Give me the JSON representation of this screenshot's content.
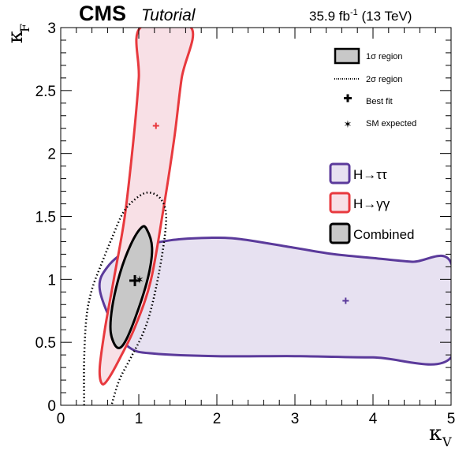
{
  "chart_data": {
    "type": "contour",
    "experiment": "CMS",
    "experiment_sub": "Tutorial",
    "lumi": "35.9 fb",
    "lumi_sup": "-1",
    "energy": " (13 TeV)",
    "xlabel": "κ",
    "xlabel_sub": "V",
    "ylabel": "κ",
    "ylabel_sub": "F",
    "xlim": [
      0,
      5
    ],
    "ylim": [
      0,
      3
    ],
    "xticks": [
      0,
      1,
      2,
      3,
      4,
      5
    ],
    "yticks": [
      0,
      0.5,
      1,
      1.5,
      2,
      2.5,
      3
    ],
    "ytick_labels": [
      "0",
      "0.5",
      "1",
      "1.5",
      "2",
      "2.5",
      "3"
    ],
    "style_legend": [
      {
        "label": "1σ region",
        "symbol": "box"
      },
      {
        "label": "2σ region",
        "symbol": "dotted"
      },
      {
        "label": "Best fit",
        "symbol": "cross"
      },
      {
        "label": "SM expected",
        "symbol": "star"
      }
    ],
    "series": [
      {
        "name": "H→ττ",
        "color": "#5b3a9b",
        "fill": "#e7e1f1",
        "best_fit": [
          3.65,
          0.83
        ],
        "contour_1sigma": [
          [
            0.7,
            0.6
          ],
          [
            0.5,
            0.92
          ],
          [
            0.6,
            1.1
          ],
          [
            0.9,
            1.24
          ],
          [
            1.4,
            1.31
          ],
          [
            1.9,
            1.33
          ],
          [
            2.3,
            1.32
          ],
          [
            3.0,
            1.25
          ],
          [
            3.5,
            1.2
          ],
          [
            4.0,
            1.17
          ],
          [
            4.5,
            1.14
          ],
          [
            5.0,
            1.13
          ],
          [
            5.0,
            0.38
          ],
          [
            4.0,
            0.38
          ],
          [
            3.0,
            0.39
          ],
          [
            2.0,
            0.39
          ],
          [
            1.2,
            0.41
          ],
          [
            0.9,
            0.45
          ],
          [
            0.7,
            0.6
          ]
        ]
      },
      {
        "name": "H→γγ",
        "color": "#e8393e",
        "fill": "#f8e0e6",
        "best_fit": [
          1.22,
          2.22
        ],
        "contour_1sigma": [
          [
            0.53,
            0.17
          ],
          [
            0.62,
            0.22
          ],
          [
            0.78,
            0.4
          ],
          [
            0.95,
            0.62
          ],
          [
            1.15,
            0.98
          ],
          [
            1.3,
            1.5
          ],
          [
            1.45,
            2.1
          ],
          [
            1.55,
            2.6
          ],
          [
            1.67,
            3.0
          ],
          [
            1.02,
            3.0
          ],
          [
            1.0,
            2.6
          ],
          [
            0.93,
            2.1
          ],
          [
            0.82,
            1.5
          ],
          [
            0.68,
            1.0
          ],
          [
            0.57,
            0.62
          ],
          [
            0.5,
            0.3
          ],
          [
            0.53,
            0.17
          ]
        ]
      },
      {
        "name": "Combined",
        "color": "#000000",
        "fill": "#c8c8c8",
        "best_fit": [
          0.95,
          0.99
        ],
        "contour_1sigma": [
          [
            0.72,
            0.46
          ],
          [
            0.82,
            0.5
          ],
          [
            0.97,
            0.72
          ],
          [
            1.12,
            1.02
          ],
          [
            1.17,
            1.25
          ],
          [
            1.1,
            1.4
          ],
          [
            1.03,
            1.41
          ],
          [
            0.9,
            1.28
          ],
          [
            0.76,
            1.05
          ],
          [
            0.66,
            0.78
          ],
          [
            0.64,
            0.58
          ],
          [
            0.72,
            0.46
          ]
        ],
        "contour_2sigma": [
          [
            0.3,
            0.0
          ],
          [
            0.3,
            0.36
          ],
          [
            0.33,
            0.7
          ],
          [
            0.4,
            0.92
          ],
          [
            0.52,
            1.12
          ],
          [
            0.65,
            1.32
          ],
          [
            0.8,
            1.53
          ],
          [
            0.96,
            1.64
          ],
          [
            1.12,
            1.69
          ],
          [
            1.28,
            1.64
          ],
          [
            1.35,
            1.5
          ],
          [
            1.3,
            1.2
          ],
          [
            1.18,
            0.82
          ],
          [
            1.06,
            0.58
          ],
          [
            0.9,
            0.38
          ],
          [
            0.75,
            0.2
          ],
          [
            0.65,
            0.0
          ]
        ]
      }
    ],
    "sm_expected": [
      1.0,
      1.0
    ],
    "grid": false
  }
}
